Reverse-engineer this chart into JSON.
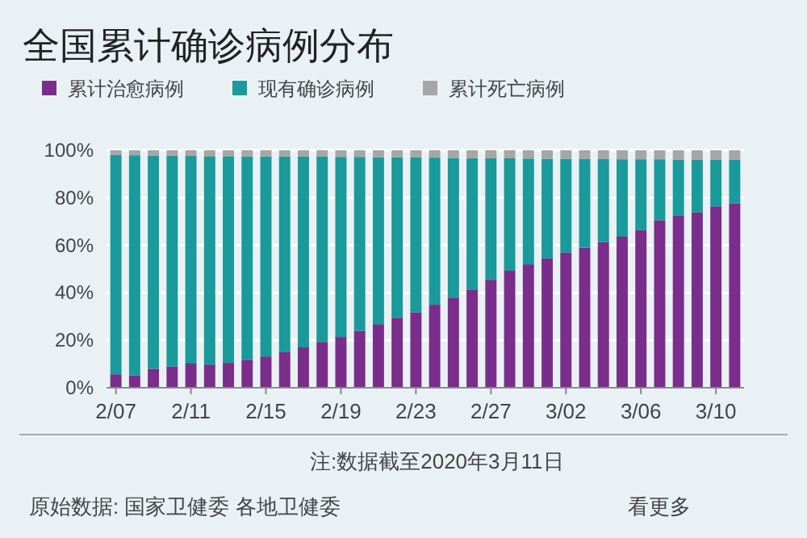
{
  "chart_data": {
    "type": "bar",
    "stacked": true,
    "title": "全国累计确诊病例分布",
    "categories": [
      "2/07",
      null,
      null,
      null,
      "2/11",
      null,
      null,
      null,
      "2/15",
      null,
      null,
      null,
      "2/19",
      null,
      null,
      null,
      "2/23",
      null,
      null,
      null,
      "2/27",
      null,
      null,
      null,
      "3/02",
      null,
      null,
      null,
      "3/06",
      null,
      null,
      null,
      "3/10",
      null
    ],
    "series": [
      {
        "name": "累计治愈病例",
        "color": "#7b2d8b",
        "values": [
          5.7,
          5.2,
          8,
          9,
          10.2,
          9.8,
          10.5,
          11.8,
          13.2,
          15.2,
          17,
          19.3,
          21.4,
          23.9,
          26.8,
          29.5,
          31.8,
          35,
          38,
          41.4,
          45.5,
          49.3,
          52,
          54.5,
          57,
          59,
          61.4,
          63.6,
          66.4,
          70.5,
          72.5,
          73.9,
          76.4,
          77.7
        ]
      },
      {
        "name": "现有确诊病例",
        "color": "#1a9a9a",
        "values": [
          92.3,
          92.7,
          89.8,
          88.7,
          87.4,
          87.7,
          87.0,
          85.6,
          84.2,
          82.1,
          80.3,
          78.0,
          75.8,
          73.3,
          70.3,
          67.6,
          65.2,
          61.9,
          58.8,
          55.3,
          51.1,
          47.3,
          44.5,
          41.9,
          39.4,
          37.3,
          34.9,
          32.6,
          29.8,
          25.7,
          23.6,
          22.2,
          19.7,
          18.4
        ]
      },
      {
        "name": "累计死亡病例",
        "color": "#a6a6a6",
        "values": [
          2.0,
          2.1,
          2.2,
          2.3,
          2.4,
          2.5,
          2.5,
          2.6,
          2.6,
          2.7,
          2.7,
          2.7,
          2.8,
          2.8,
          2.9,
          2.9,
          3.0,
          3.1,
          3.2,
          3.3,
          3.4,
          3.4,
          3.5,
          3.6,
          3.6,
          3.7,
          3.7,
          3.8,
          3.8,
          3.8,
          3.9,
          3.9,
          3.9,
          3.9
        ]
      }
    ],
    "ylim": [
      0,
      100
    ],
    "yticks": [
      {
        "value": 0,
        "label": "0%"
      },
      {
        "value": 20,
        "label": "20%"
      },
      {
        "value": 40,
        "label": "40%"
      },
      {
        "value": 60,
        "label": "60%"
      },
      {
        "value": 80,
        "label": "80%"
      },
      {
        "value": 100,
        "label": "100%"
      }
    ],
    "grid": "y",
    "legend": "top left",
    "annotations": [
      "注:数据截至2020年3月11日",
      "原始数据: 国家卫健委 各地卫健委",
      "看更多"
    ]
  }
}
